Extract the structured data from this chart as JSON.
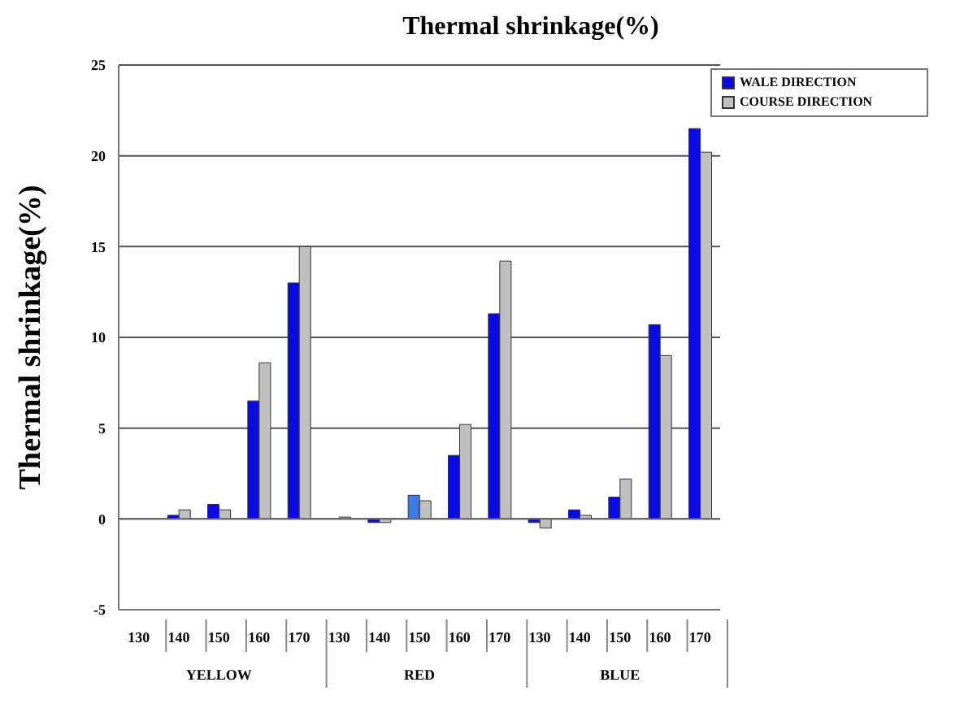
{
  "chart_data": {
    "type": "bar",
    "title": "Thermal shrinkage(%)",
    "ylabel": "Thermal shrinkage(%)",
    "categories": [
      "130",
      "140",
      "150",
      "160",
      "170",
      "130",
      "140",
      "150",
      "160",
      "170",
      "130",
      "140",
      "150",
      "160",
      "170"
    ],
    "annotations": [
      "YELLOW",
      "RED",
      "BLUE"
    ],
    "series": [
      {
        "name": "WALE DIRECTION",
        "color": "#0a0ae6",
        "colors": [
          "#0a0ae6",
          "#0a0ae6",
          "#0a0ae6",
          "#0a0ae6",
          "#0a0ae6",
          "#0a0ae6",
          "#0a0ae6",
          "#3a7be8",
          "#0a0ae6",
          "#0a0ae6",
          "#0a0ae6",
          "#0a0ae6",
          "#0a0ae6",
          "#0a0ae6",
          "#0a0ae6"
        ],
        "values": [
          0,
          0.2,
          0.8,
          6.5,
          13,
          0,
          -0.2,
          1.3,
          3.5,
          11.3,
          -0.2,
          0.5,
          1.2,
          10.7,
          21.5
        ]
      },
      {
        "name": "COURSE DIRECTION",
        "color": "#c0c0c0",
        "values": [
          0,
          0.5,
          0.5,
          8.6,
          15,
          0.1,
          -0.2,
          1.0,
          5.2,
          14.2,
          -0.5,
          0.2,
          2.2,
          9.0,
          20.2
        ]
      }
    ],
    "ylim": [
      -5,
      25
    ],
    "yticks": [
      -5,
      0,
      5,
      10,
      15,
      20,
      25
    ],
    "grid": "y",
    "legend": "top right"
  }
}
